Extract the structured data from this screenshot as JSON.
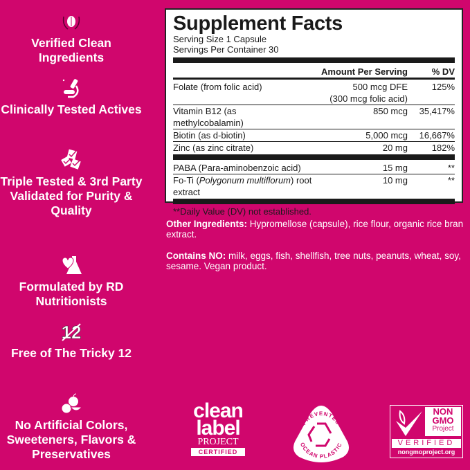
{
  "features": [
    {
      "icon": "leaf-hands-icon",
      "label": "Verified Clean Ingredients"
    },
    {
      "icon": "microscope-icon",
      "label": "Clinically Tested Actives"
    },
    {
      "icon": "checkmarks-icon",
      "label": "Triple Tested & 3rd Party Validated for Purity & Quality"
    },
    {
      "icon": "flask-hearts-icon",
      "label": "Formulated by RD Nutritionists"
    },
    {
      "icon": "crossed-12-icon",
      "label": "Free of The Tricky 12"
    },
    {
      "icon": "fruit-icon",
      "label": "No Artificial Colors, Sweeteners, Flavors & Preservatives"
    }
  ],
  "supplement_facts": {
    "title": "Supplement Facts",
    "serving_size": "Serving Size 1 Capsule",
    "servings_per_container": "Servings Per Container 30",
    "header": {
      "amount": "Amount Per Serving",
      "dv": "% DV"
    },
    "rows": [
      {
        "name": "Folate (from folic acid)",
        "amount": "500 mcg DFE",
        "amount2": "(300 mcg folic acid)",
        "dv": "125%"
      },
      {
        "name": "Vitamin B12 (as methylcobalamin)",
        "amount": "850 mcg",
        "dv": "35,417%"
      },
      {
        "name": "Biotin (as d-biotin)",
        "amount": "5,000 mcg",
        "dv": "16,667%"
      },
      {
        "name": "Zinc (as zinc citrate)",
        "amount": "20 mg",
        "dv": "182%"
      }
    ],
    "rows2": [
      {
        "name": "PABA (Para-aminobenzoic acid)",
        "amount": "15 mg",
        "dv": "**"
      },
      {
        "name_pre": "Fo-Ti (",
        "name_italic": "Polygonum multiflorum",
        "name_post": ") root extract",
        "amount": "10 mg",
        "dv": "**"
      }
    ],
    "footnote": "**Daily Value (DV) not established."
  },
  "other_ingredients": {
    "label": "Other Ingredients:",
    "text": " Hypromellose (capsule), rice flour, organic rice bran extract."
  },
  "contains_no": {
    "label": "Contains NO:",
    "text": " milk, eggs, fish, shellfish, tree nuts, peanuts, wheat, soy, sesame. Vegan product."
  },
  "badges": {
    "clean_label": {
      "line1": "clean",
      "line2": "label",
      "line3": "PROJECT",
      "line4": "CERTIFIED"
    },
    "ocean_plastic": {
      "top": "PREVENTED",
      "bottom": "OCEAN PLASTIC"
    },
    "non_gmo": {
      "line1": "NON",
      "line2": "GMO",
      "line3": "Project",
      "line4": "VERIFIED",
      "url": "nongmoproject.org"
    }
  },
  "colors": {
    "background": "#d0066d",
    "label_bg": "#ffffff",
    "text_dark": "#1a1a1a"
  }
}
